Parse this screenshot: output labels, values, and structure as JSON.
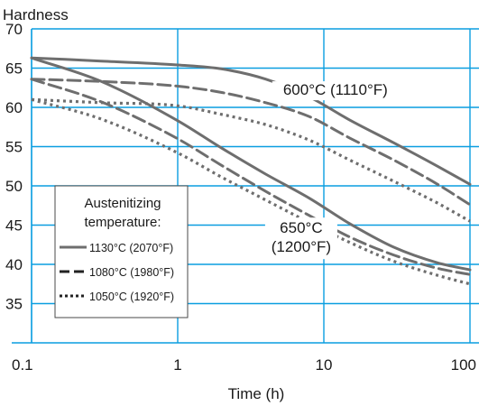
{
  "chart_data": {
    "type": "line",
    "title": "",
    "ylabel": "Hardness",
    "xlabel": "Time (h)",
    "x_scale": "log",
    "xlim": [
      0.1,
      100
    ],
    "ylim": [
      30,
      70
    ],
    "x_ticks": [
      0.1,
      1,
      10,
      100
    ],
    "x_tick_labels": [
      "0.1",
      "1",
      "10",
      "100"
    ],
    "y_ticks": [
      35,
      40,
      45,
      50,
      55,
      60,
      65,
      70
    ],
    "y_tick_labels": [
      "35",
      "40",
      "45",
      "50",
      "55",
      "60",
      "65",
      "70"
    ],
    "grid": true,
    "legend": {
      "title_line1": "Austenitizing",
      "title_line2": "temperature:",
      "placement": "left-middle"
    },
    "annotations": [
      {
        "id": "t600",
        "lines": [
          "600°C (1110°F)"
        ],
        "x": 12,
        "y": 61.6
      },
      {
        "id": "t650",
        "lines": [
          "650°C",
          "(1200°F)"
        ],
        "x": 7,
        "y": 44
      }
    ],
    "series": [
      {
        "name": "1130°C (2070°F)",
        "style": "solid",
        "group": "600°C (1110°F)",
        "x": [
          0.1,
          0.3,
          1,
          2,
          4,
          8,
          15,
          30,
          60,
          100
        ],
        "y": [
          66.3,
          65.9,
          65.4,
          64.9,
          63.6,
          61.3,
          58.4,
          55.5,
          52.5,
          50.2
        ]
      },
      {
        "name": "1080°C (1980°F)",
        "style": "dashed",
        "group": "600°C (1110°F)",
        "x": [
          0.1,
          0.3,
          1,
          2,
          4,
          8,
          15,
          30,
          60,
          100
        ],
        "y": [
          63.6,
          63.3,
          62.7,
          61.9,
          60.6,
          58.8,
          56.1,
          53.3,
          50.2,
          47.6
        ]
      },
      {
        "name": "1050°C (1920°F)",
        "style": "dotted",
        "group": "600°C (1110°F)",
        "x": [
          0.1,
          0.3,
          1,
          2,
          4,
          8,
          15,
          30,
          60,
          100
        ],
        "y": [
          61.0,
          60.6,
          60.2,
          59.1,
          57.8,
          55.8,
          53.3,
          50.6,
          47.8,
          45.5
        ]
      },
      {
        "name": "1130°C (2070°F)",
        "style": "solid",
        "group": "650°C (1200°F)",
        "x": [
          0.1,
          0.3,
          1,
          2,
          4,
          8,
          15,
          30,
          60,
          100
        ],
        "y": [
          66.3,
          63.3,
          58.3,
          54.8,
          51.5,
          48.4,
          45.2,
          42.2,
          40.2,
          39.3
        ]
      },
      {
        "name": "1080°C (1980°F)",
        "style": "dashed",
        "group": "650°C (1200°F)",
        "x": [
          0.1,
          0.3,
          1,
          2,
          4,
          8,
          15,
          30,
          60,
          100
        ],
        "y": [
          63.6,
          60.7,
          56.0,
          52.6,
          49.3,
          46.2,
          43.5,
          41.2,
          39.5,
          38.7
        ]
      },
      {
        "name": "1050°C (1920°F)",
        "style": "dotted",
        "group": "650°C (1200°F)",
        "x": [
          0.1,
          0.3,
          1,
          2,
          4,
          8,
          15,
          30,
          60,
          100
        ],
        "y": [
          61.0,
          58.5,
          54.2,
          51.1,
          48.2,
          45.3,
          42.8,
          40.4,
          38.6,
          37.5
        ]
      }
    ],
    "legend_entries": [
      {
        "label": "1130°C (2070°F)",
        "style": "solid"
      },
      {
        "label": "1080°C (1980°F)",
        "style": "dashed"
      },
      {
        "label": "1050°C (1920°F)",
        "style": "dotted"
      }
    ],
    "colors": {
      "grid": "#0a9ee0",
      "series": "#6e6e6e",
      "text": "#1a1a1a",
      "background": "#ffffff"
    }
  }
}
